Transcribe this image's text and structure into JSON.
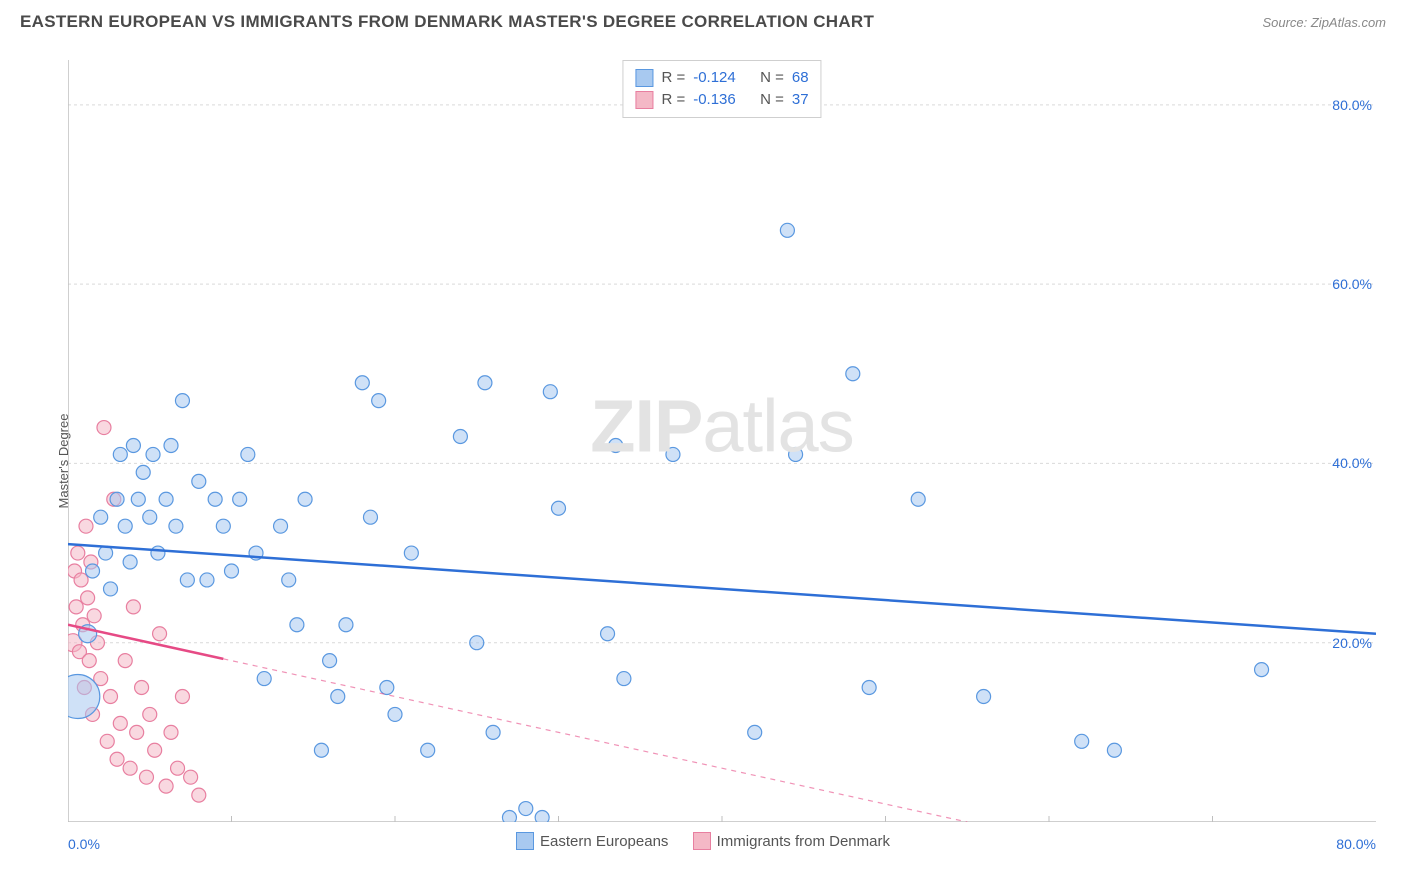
{
  "title": "EASTERN EUROPEAN VS IMMIGRANTS FROM DENMARK MASTER'S DEGREE CORRELATION CHART",
  "source": "Source: ZipAtlas.com",
  "watermark_bold": "ZIP",
  "watermark_light": "atlas",
  "chart": {
    "type": "scatter",
    "ylabel": "Master's Degree",
    "x_domain": [
      0,
      80
    ],
    "y_domain": [
      0,
      85
    ],
    "x_tick_min_label": "0.0%",
    "x_tick_max_label": "80.0%",
    "x_minor_ticks": [
      10,
      20,
      30,
      40,
      50,
      60,
      70
    ],
    "y_gridlines": [
      {
        "v": 20,
        "label": "20.0%"
      },
      {
        "v": 40,
        "label": "40.0%"
      },
      {
        "v": 60,
        "label": "60.0%"
      },
      {
        "v": 80,
        "label": "80.0%"
      }
    ],
    "background_color": "#ffffff",
    "grid_color": "#d9d9d9",
    "axis_color": "#bfbfbf",
    "series": [
      {
        "name": "Eastern Europeans",
        "fill": "#a8c9f0",
        "fill_opacity": 0.55,
        "stroke": "#5a98e0",
        "trend_color": "#2e6fd6",
        "trend_solid_xmax": 80,
        "R": "-0.124",
        "N": "68",
        "trend": {
          "y0": 31.0,
          "y80": 21.0
        },
        "points": [
          {
            "x": 0.6,
            "y": 14,
            "r": 22
          },
          {
            "x": 1.2,
            "y": 21,
            "r": 9
          },
          {
            "x": 1.5,
            "y": 28,
            "r": 7
          },
          {
            "x": 2.0,
            "y": 34,
            "r": 7
          },
          {
            "x": 2.3,
            "y": 30,
            "r": 7
          },
          {
            "x": 2.6,
            "y": 26,
            "r": 7
          },
          {
            "x": 3.0,
            "y": 36,
            "r": 7
          },
          {
            "x": 3.2,
            "y": 41,
            "r": 7
          },
          {
            "x": 3.5,
            "y": 33,
            "r": 7
          },
          {
            "x": 3.8,
            "y": 29,
            "r": 7
          },
          {
            "x": 4.0,
            "y": 42,
            "r": 7
          },
          {
            "x": 4.3,
            "y": 36,
            "r": 7
          },
          {
            "x": 4.6,
            "y": 39,
            "r": 7
          },
          {
            "x": 5.0,
            "y": 34,
            "r": 7
          },
          {
            "x": 5.2,
            "y": 41,
            "r": 7
          },
          {
            "x": 5.5,
            "y": 30,
            "r": 7
          },
          {
            "x": 6.0,
            "y": 36,
            "r": 7
          },
          {
            "x": 6.3,
            "y": 42,
            "r": 7
          },
          {
            "x": 6.6,
            "y": 33,
            "r": 7
          },
          {
            "x": 7.0,
            "y": 47,
            "r": 7
          },
          {
            "x": 7.3,
            "y": 27,
            "r": 7
          },
          {
            "x": 8.0,
            "y": 38,
            "r": 7
          },
          {
            "x": 8.5,
            "y": 27,
            "r": 7
          },
          {
            "x": 9.0,
            "y": 36,
            "r": 7
          },
          {
            "x": 9.5,
            "y": 33,
            "r": 7
          },
          {
            "x": 10.0,
            "y": 28,
            "r": 7
          },
          {
            "x": 10.5,
            "y": 36,
            "r": 7
          },
          {
            "x": 11.0,
            "y": 41,
            "r": 7
          },
          {
            "x": 11.5,
            "y": 30,
            "r": 7
          },
          {
            "x": 12.0,
            "y": 16,
            "r": 7
          },
          {
            "x": 13.0,
            "y": 33,
            "r": 7
          },
          {
            "x": 13.5,
            "y": 27,
            "r": 7
          },
          {
            "x": 14.0,
            "y": 22,
            "r": 7
          },
          {
            "x": 14.5,
            "y": 36,
            "r": 7
          },
          {
            "x": 15.5,
            "y": 8,
            "r": 7
          },
          {
            "x": 16.0,
            "y": 18,
            "r": 7
          },
          {
            "x": 16.5,
            "y": 14,
            "r": 7
          },
          {
            "x": 17.0,
            "y": 22,
            "r": 7
          },
          {
            "x": 18.0,
            "y": 49,
            "r": 7
          },
          {
            "x": 18.5,
            "y": 34,
            "r": 7
          },
          {
            "x": 19.0,
            "y": 47,
            "r": 7
          },
          {
            "x": 19.5,
            "y": 15,
            "r": 7
          },
          {
            "x": 20.0,
            "y": 12,
            "r": 7
          },
          {
            "x": 21.0,
            "y": 30,
            "r": 7
          },
          {
            "x": 22.0,
            "y": 8,
            "r": 7
          },
          {
            "x": 24.0,
            "y": 43,
            "r": 7
          },
          {
            "x": 25.0,
            "y": 20,
            "r": 7
          },
          {
            "x": 25.5,
            "y": 49,
            "r": 7
          },
          {
            "x": 26.0,
            "y": 10,
            "r": 7
          },
          {
            "x": 27.0,
            "y": 0.5,
            "r": 7
          },
          {
            "x": 28.0,
            "y": 1.5,
            "r": 7
          },
          {
            "x": 29.0,
            "y": 0.5,
            "r": 7
          },
          {
            "x": 29.5,
            "y": 48,
            "r": 7
          },
          {
            "x": 30.0,
            "y": 35,
            "r": 7
          },
          {
            "x": 33.0,
            "y": 21,
            "r": 7
          },
          {
            "x": 33.5,
            "y": 42,
            "r": 7
          },
          {
            "x": 34.0,
            "y": 16,
            "r": 7
          },
          {
            "x": 37.0,
            "y": 41,
            "r": 7
          },
          {
            "x": 42.0,
            "y": 10,
            "r": 7
          },
          {
            "x": 44.0,
            "y": 66,
            "r": 7
          },
          {
            "x": 44.5,
            "y": 41,
            "r": 7
          },
          {
            "x": 48.0,
            "y": 50,
            "r": 7
          },
          {
            "x": 49.0,
            "y": 15,
            "r": 7
          },
          {
            "x": 52.0,
            "y": 36,
            "r": 7
          },
          {
            "x": 56.0,
            "y": 14,
            "r": 7
          },
          {
            "x": 62.0,
            "y": 9,
            "r": 7
          },
          {
            "x": 64.0,
            "y": 8,
            "r": 7
          },
          {
            "x": 73.0,
            "y": 17,
            "r": 7
          }
        ]
      },
      {
        "name": "Immigrants from Denmark",
        "fill": "#f4b8c6",
        "fill_opacity": 0.55,
        "stroke": "#e87fa0",
        "trend_color": "#e64a85",
        "trend_solid_xmax": 9.5,
        "R": "-0.136",
        "N": "37",
        "trend": {
          "y0": 22.0,
          "y80": -10.0
        },
        "points": [
          {
            "x": 0.3,
            "y": 20,
            "r": 9
          },
          {
            "x": 0.4,
            "y": 28,
            "r": 7
          },
          {
            "x": 0.5,
            "y": 24,
            "r": 7
          },
          {
            "x": 0.6,
            "y": 30,
            "r": 7
          },
          {
            "x": 0.7,
            "y": 19,
            "r": 7
          },
          {
            "x": 0.8,
            "y": 27,
            "r": 7
          },
          {
            "x": 0.9,
            "y": 22,
            "r": 7
          },
          {
            "x": 1.0,
            "y": 15,
            "r": 7
          },
          {
            "x": 1.1,
            "y": 33,
            "r": 7
          },
          {
            "x": 1.2,
            "y": 25,
            "r": 7
          },
          {
            "x": 1.3,
            "y": 18,
            "r": 7
          },
          {
            "x": 1.4,
            "y": 29,
            "r": 7
          },
          {
            "x": 1.5,
            "y": 12,
            "r": 7
          },
          {
            "x": 1.6,
            "y": 23,
            "r": 7
          },
          {
            "x": 1.8,
            "y": 20,
            "r": 7
          },
          {
            "x": 2.0,
            "y": 16,
            "r": 7
          },
          {
            "x": 2.2,
            "y": 44,
            "r": 7
          },
          {
            "x": 2.4,
            "y": 9,
            "r": 7
          },
          {
            "x": 2.6,
            "y": 14,
            "r": 7
          },
          {
            "x": 2.8,
            "y": 36,
            "r": 7
          },
          {
            "x": 3.0,
            "y": 7,
            "r": 7
          },
          {
            "x": 3.2,
            "y": 11,
            "r": 7
          },
          {
            "x": 3.5,
            "y": 18,
            "r": 7
          },
          {
            "x": 3.8,
            "y": 6,
            "r": 7
          },
          {
            "x": 4.0,
            "y": 24,
            "r": 7
          },
          {
            "x": 4.2,
            "y": 10,
            "r": 7
          },
          {
            "x": 4.5,
            "y": 15,
            "r": 7
          },
          {
            "x": 4.8,
            "y": 5,
            "r": 7
          },
          {
            "x": 5.0,
            "y": 12,
            "r": 7
          },
          {
            "x": 5.3,
            "y": 8,
            "r": 7
          },
          {
            "x": 5.6,
            "y": 21,
            "r": 7
          },
          {
            "x": 6.0,
            "y": 4,
            "r": 7
          },
          {
            "x": 6.3,
            "y": 10,
            "r": 7
          },
          {
            "x": 6.7,
            "y": 6,
            "r": 7
          },
          {
            "x": 7.0,
            "y": 14,
            "r": 7
          },
          {
            "x": 7.5,
            "y": 5,
            "r": 7
          },
          {
            "x": 8.0,
            "y": 3,
            "r": 7
          }
        ]
      }
    ]
  },
  "legend_top": {
    "r_label": "R =",
    "n_label": "N ="
  }
}
